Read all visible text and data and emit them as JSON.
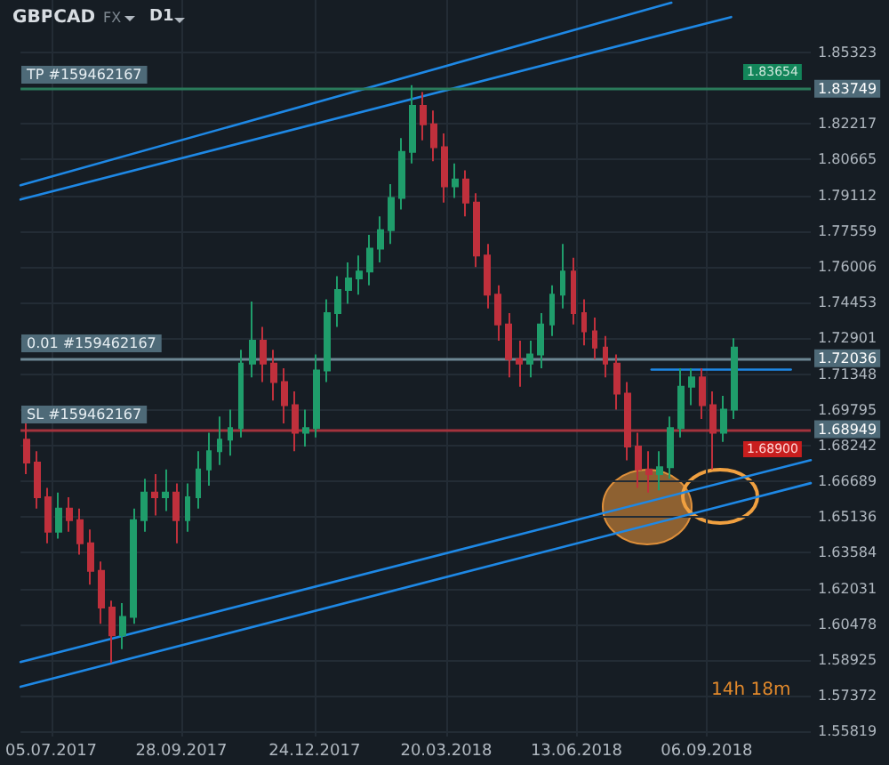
{
  "chart_data": {
    "type": "candlestick",
    "title": "GBPCAD",
    "annotations": [
      "FX",
      "D1",
      "1.83654",
      "1.68900",
      "14h 18m",
      "TP #159462167",
      "0.01 #159462167",
      "SL #159462167"
    ],
    "xlim": [
      "2017-06-15",
      "2018-11-13"
    ],
    "xticks": [
      {
        "value": "2017-07-05",
        "label": "05.07.2017"
      },
      {
        "value": "2017-09-28",
        "label": "28.09.2017"
      },
      {
        "value": "2017-12-24",
        "label": "24.12.2017"
      },
      {
        "value": "2018-03-20",
        "label": "20.03.2018"
      },
      {
        "value": "2018-06-13",
        "label": "13.06.2018"
      },
      {
        "value": "2018-09-06",
        "label": "06.09.2018"
      }
    ],
    "ylim": [
      1.556,
      1.876
    ],
    "yticks": [
      1.55819,
      1.57372,
      1.58925,
      1.60478,
      1.62031,
      1.63584,
      1.65136,
      1.66689,
      1.68242,
      1.69795,
      1.71348,
      1.72901,
      1.74453,
      1.76006,
      1.77559,
      1.79112,
      1.80665,
      1.82217,
      1.85323
    ],
    "grid": true,
    "ref_lines": [
      {
        "axis": "y",
        "value": 1.83749,
        "label": "1.83749",
        "color": "#2a7a5a"
      },
      {
        "axis": "y",
        "value": 1.72036,
        "label": "1.72036",
        "color": "#6d8794"
      },
      {
        "axis": "y",
        "value": 1.68949,
        "label": "1.68949",
        "color": "#a3333d"
      }
    ],
    "series": [
      {
        "type": "candlestick",
        "x": [
          "2017-06-19",
          "2017-06-26",
          "2017-07-03",
          "2017-07-10",
          "2017-07-17",
          "2017-07-24",
          "2017-07-31",
          "2017-08-07",
          "2017-08-14",
          "2017-08-21",
          "2017-08-28",
          "2017-09-04",
          "2017-09-11",
          "2017-09-18",
          "2017-09-25",
          "2017-10-02",
          "2017-10-09",
          "2017-10-16",
          "2017-10-23",
          "2017-10-30",
          "2017-11-06",
          "2017-11-13",
          "2017-11-20",
          "2017-11-27",
          "2017-12-04",
          "2017-12-11",
          "2017-12-18",
          "2017-12-25",
          "2018-01-01",
          "2018-01-08",
          "2018-01-15",
          "2018-01-22",
          "2018-01-29",
          "2018-02-05",
          "2018-02-12",
          "2018-02-19",
          "2018-02-26",
          "2018-03-05",
          "2018-03-12",
          "2018-03-19",
          "2018-03-26",
          "2018-04-02",
          "2018-04-09",
          "2018-04-16",
          "2018-04-23",
          "2018-04-30",
          "2018-05-07",
          "2018-05-14",
          "2018-05-21",
          "2018-05-28",
          "2018-06-04",
          "2018-06-11",
          "2018-06-18",
          "2018-06-25",
          "2018-07-02",
          "2018-07-09",
          "2018-07-16",
          "2018-07-23",
          "2018-07-30",
          "2018-08-06",
          "2018-08-13",
          "2018-08-20",
          "2018-08-27",
          "2018-09-03",
          "2018-09-10",
          "2018-09-17",
          "2018-09-24"
        ],
        "ohlc": [
          [
            1.685,
            1.692,
            1.67,
            1.675
          ],
          [
            1.675,
            1.68,
            1.655,
            1.66
          ],
          [
            1.66,
            1.664,
            1.64,
            1.645
          ],
          [
            1.645,
            1.662,
            1.642,
            1.655
          ],
          [
            1.655,
            1.66,
            1.645,
            1.65
          ],
          [
            1.65,
            1.655,
            1.635,
            1.64
          ],
          [
            1.64,
            1.646,
            1.622,
            1.628
          ],
          [
            1.628,
            1.632,
            1.605,
            1.612
          ],
          [
            1.612,
            1.615,
            1.588,
            1.6
          ],
          [
            1.6,
            1.614,
            1.594,
            1.608
          ],
          [
            1.608,
            1.655,
            1.605,
            1.65
          ],
          [
            1.65,
            1.668,
            1.645,
            1.662
          ],
          [
            1.662,
            1.67,
            1.652,
            1.66
          ],
          [
            1.66,
            1.672,
            1.654,
            1.662
          ],
          [
            1.662,
            1.666,
            1.64,
            1.65
          ],
          [
            1.65,
            1.666,
            1.645,
            1.66
          ],
          [
            1.66,
            1.68,
            1.655,
            1.672
          ],
          [
            1.672,
            1.688,
            1.665,
            1.68
          ],
          [
            1.68,
            1.695,
            1.674,
            1.685
          ],
          [
            1.685,
            1.698,
            1.678,
            1.69
          ],
          [
            1.69,
            1.724,
            1.686,
            1.718
          ],
          [
            1.718,
            1.745,
            1.712,
            1.728
          ],
          [
            1.728,
            1.734,
            1.71,
            1.718
          ],
          [
            1.718,
            1.724,
            1.702,
            1.71
          ],
          [
            1.71,
            1.716,
            1.692,
            1.7
          ],
          [
            1.7,
            1.706,
            1.68,
            1.688
          ],
          [
            1.688,
            1.698,
            1.682,
            1.69
          ],
          [
            1.69,
            1.722,
            1.686,
            1.715
          ],
          [
            1.715,
            1.746,
            1.71,
            1.74
          ],
          [
            1.74,
            1.756,
            1.734,
            1.75
          ],
          [
            1.75,
            1.762,
            1.744,
            1.755
          ],
          [
            1.755,
            1.765,
            1.748,
            1.758
          ],
          [
            1.758,
            1.774,
            1.752,
            1.768
          ],
          [
            1.768,
            1.782,
            1.762,
            1.776
          ],
          [
            1.776,
            1.796,
            1.77,
            1.79
          ],
          [
            1.79,
            1.816,
            1.785,
            1.81
          ],
          [
            1.81,
            1.839,
            1.805,
            1.83
          ],
          [
            1.83,
            1.836,
            1.815,
            1.822
          ],
          [
            1.822,
            1.828,
            1.806,
            1.812
          ],
          [
            1.812,
            1.818,
            1.788,
            1.795
          ],
          [
            1.795,
            1.805,
            1.79,
            1.798
          ],
          [
            1.798,
            1.802,
            1.782,
            1.788
          ],
          [
            1.788,
            1.792,
            1.76,
            1.765
          ],
          [
            1.765,
            1.77,
            1.742,
            1.748
          ],
          [
            1.748,
            1.752,
            1.728,
            1.735
          ],
          [
            1.735,
            1.74,
            1.712,
            1.72
          ],
          [
            1.72,
            1.728,
            1.708,
            1.718
          ],
          [
            1.718,
            1.728,
            1.712,
            1.722
          ],
          [
            1.722,
            1.74,
            1.716,
            1.735
          ],
          [
            1.735,
            1.752,
            1.73,
            1.748
          ],
          [
            1.748,
            1.77,
            1.742,
            1.758
          ],
          [
            1.758,
            1.764,
            1.735,
            1.74
          ],
          [
            1.74,
            1.746,
            1.726,
            1.732
          ],
          [
            1.732,
            1.738,
            1.72,
            1.725
          ],
          [
            1.725,
            1.73,
            1.712,
            1.718
          ],
          [
            1.718,
            1.722,
            1.698,
            1.705
          ],
          [
            1.705,
            1.71,
            1.676,
            1.682
          ],
          [
            1.682,
            1.688,
            1.664,
            1.672
          ],
          [
            1.672,
            1.68,
            1.662,
            1.67
          ],
          [
            1.67,
            1.68,
            1.663,
            1.673
          ],
          [
            1.673,
            1.695,
            1.668,
            1.69
          ],
          [
            1.69,
            1.716,
            1.686,
            1.708
          ],
          [
            1.708,
            1.716,
            1.7,
            1.712
          ],
          [
            1.712,
            1.716,
            1.694,
            1.7
          ],
          [
            1.7,
            1.706,
            1.672,
            1.688
          ],
          [
            1.688,
            1.704,
            1.684,
            1.698
          ],
          [
            1.698,
            1.729,
            1.694,
            1.725
          ]
        ],
        "colors": [
          "#c0303c",
          "#c0303c",
          "#c0303c",
          "#1f9d6b",
          "#c0303c",
          "#c0303c",
          "#c0303c",
          "#c0303c",
          "#c0303c",
          "#1f9d6b",
          "#1f9d6b",
          "#1f9d6b",
          "#c0303c",
          "#1f9d6b",
          "#c0303c",
          "#1f9d6b",
          "#1f9d6b",
          "#1f9d6b",
          "#1f9d6b",
          "#1f9d6b",
          "#1f9d6b",
          "#1f9d6b",
          "#c0303c",
          "#c0303c",
          "#c0303c",
          "#c0303c",
          "#1f9d6b",
          "#1f9d6b",
          "#1f9d6b",
          "#1f9d6b",
          "#1f9d6b",
          "#1f9d6b",
          "#1f9d6b",
          "#1f9d6b",
          "#1f9d6b",
          "#1f9d6b",
          "#1f9d6b",
          "#c0303c",
          "#c0303c",
          "#c0303c",
          "#1f9d6b",
          "#c0303c",
          "#c0303c",
          "#c0303c",
          "#c0303c",
          "#c0303c",
          "#c0303c",
          "#1f9d6b",
          "#1f9d6b",
          "#1f9d6b",
          "#1f9d6b",
          "#c0303c",
          "#c0303c",
          "#c0303c",
          "#c0303c",
          "#c0303c",
          "#c0303c",
          "#c0303c",
          "#c0303c",
          "#1f9d6b",
          "#1f9d6b",
          "#1f9d6b",
          "#1f9d6b",
          "#c0303c",
          "#c0303c",
          "#1f9d6b",
          "#1f9d6b"
        ]
      },
      {
        "type": "line",
        "color": "#1e88e5",
        "x": [
          "2017-06-15",
          "2018-08-14"
        ],
        "values": [
          1.7955,
          1.8748
        ]
      },
      {
        "type": "line",
        "color": "#1e88e5",
        "x": [
          "2017-06-15",
          "2018-09-22"
        ],
        "values": [
          1.7893,
          1.8686
        ]
      },
      {
        "type": "line",
        "color": "#1e88e5",
        "x": [
          "2017-06-15",
          "2018-11-13"
        ],
        "values": [
          1.5884,
          1.6761
        ]
      },
      {
        "type": "line",
        "color": "#1e88e5",
        "x": [
          "2017-06-15",
          "2018-11-13"
        ],
        "values": [
          1.5776,
          1.6661
        ]
      },
      {
        "type": "line",
        "color": "#1e88e5",
        "x": [
          "2018-08-01",
          "2018-10-31"
        ],
        "values": [
          1.7154,
          1.7154
        ]
      }
    ]
  }
}
